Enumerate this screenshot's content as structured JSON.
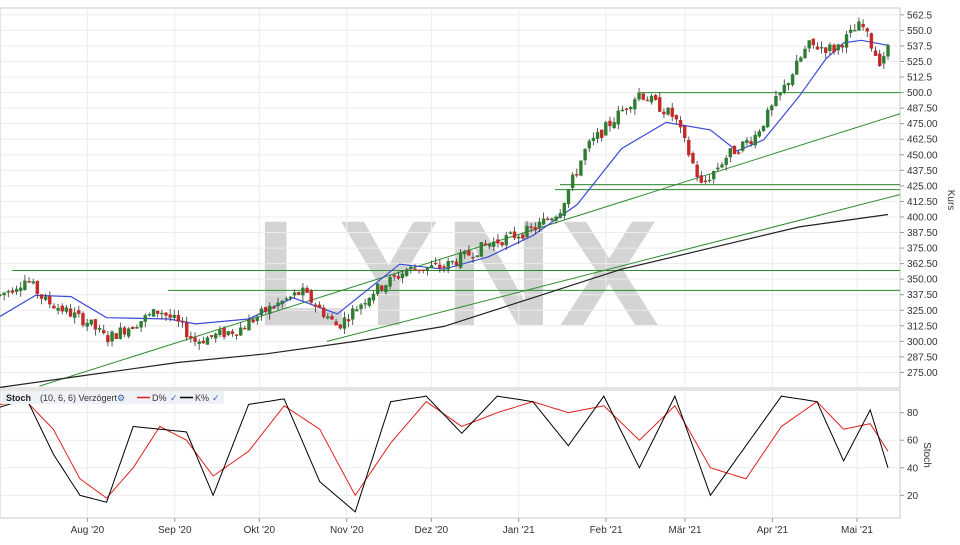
{
  "watermark": "LYNX",
  "price_panel": {
    "axis_title": "Kurs",
    "y_ticks": [
      "562.5",
      "550.0",
      "537.5",
      "525.0",
      "512.5",
      "500.0",
      "487.50",
      "475.00",
      "462.50",
      "450.00",
      "437.50",
      "425.00",
      "412.50",
      "400.00",
      "387.50",
      "375.00",
      "362.50",
      "350.00",
      "337.50",
      "325.00",
      "312.50",
      "300.00",
      "287.50",
      "275.00"
    ]
  },
  "stoch_panel": {
    "label": "Stoch",
    "params": "(10, 6, 6) Verzögert",
    "legend": [
      {
        "name": "D%",
        "color": "#e0201b"
      },
      {
        "name": "K%",
        "color": "#000000"
      }
    ],
    "axis_title": "Stoch",
    "y_ticks": [
      "80",
      "60",
      "40",
      "20"
    ]
  },
  "x_ticks": [
    "Aug '20",
    "Sep '20",
    "Okt '20",
    "Nov '20",
    "Dez '20",
    "Jan '21",
    "Feb '21",
    "Mär '21",
    "Apr '21",
    "Mai '21"
  ],
  "chart_data": [
    {
      "type": "candlestick",
      "series": [
        {
          "name": "Kurs",
          "color_up": "#2e7d32",
          "color_down": "#c62828"
        },
        {
          "name": "MA (kurz)",
          "color": "#3a4bd8"
        },
        {
          "name": "MA (lang)",
          "color": "#222222"
        }
      ],
      "ylabel": "Kurs",
      "ylim": [
        262.5,
        568
      ],
      "x_range": [
        "2020-07-01",
        "2021-05-12"
      ],
      "horizontal_levels": [
        500.0,
        426.0,
        422.0,
        357.0,
        341.0
      ],
      "trendlines": [
        {
          "from": [
            "2020-07-15",
            264
          ],
          "to": [
            "2021-05-12",
            483
          ]
        },
        {
          "from": [
            "2020-10-25",
            300
          ],
          "to": [
            "2021-05-12",
            418
          ]
        }
      ],
      "long_ma": [
        [
          0,
          263
        ],
        [
          0.1,
          273
        ],
        [
          0.2,
          283
        ],
        [
          0.3,
          290
        ],
        [
          0.4,
          300
        ],
        [
          0.5,
          312
        ],
        [
          0.6,
          335
        ],
        [
          0.7,
          358
        ],
        [
          0.8,
          375
        ],
        [
          0.9,
          392
        ],
        [
          1.0,
          402
        ]
      ],
      "short_ma": [
        [
          0,
          320
        ],
        [
          0.04,
          337
        ],
        [
          0.08,
          336
        ],
        [
          0.12,
          319
        ],
        [
          0.19,
          318
        ],
        [
          0.22,
          314
        ],
        [
          0.28,
          318
        ],
        [
          0.33,
          335
        ],
        [
          0.38,
          322
        ],
        [
          0.45,
          362
        ],
        [
          0.5,
          358
        ],
        [
          0.55,
          368
        ],
        [
          0.6,
          385
        ],
        [
          0.65,
          410
        ],
        [
          0.7,
          455
        ],
        [
          0.75,
          476
        ],
        [
          0.8,
          470
        ],
        [
          0.83,
          453
        ],
        [
          0.86,
          462
        ],
        [
          0.9,
          497
        ],
        [
          0.93,
          527
        ],
        [
          0.95,
          540
        ],
        [
          0.97,
          542
        ],
        [
          1.0,
          538
        ]
      ],
      "close_path": [
        [
          0,
          337
        ],
        [
          0.03,
          350
        ],
        [
          0.05,
          333
        ],
        [
          0.1,
          315
        ],
        [
          0.12,
          302
        ],
        [
          0.18,
          325
        ],
        [
          0.2,
          315
        ],
        [
          0.22,
          300
        ],
        [
          0.27,
          310
        ],
        [
          0.3,
          325
        ],
        [
          0.34,
          340
        ],
        [
          0.38,
          312
        ],
        [
          0.42,
          340
        ],
        [
          0.46,
          358
        ],
        [
          0.5,
          360
        ],
        [
          0.55,
          378
        ],
        [
          0.6,
          390
        ],
        [
          0.63,
          405
        ],
        [
          0.66,
          455
        ],
        [
          0.68,
          470
        ],
        [
          0.72,
          500
        ],
        [
          0.76,
          480
        ],
        [
          0.79,
          425
        ],
        [
          0.82,
          450
        ],
        [
          0.85,
          465
        ],
        [
          0.88,
          500
        ],
        [
          0.91,
          538
        ],
        [
          0.94,
          535
        ],
        [
          0.97,
          555
        ],
        [
          0.99,
          525
        ],
        [
          1.0,
          535
        ]
      ]
    },
    {
      "type": "line",
      "ylabel": "Stoch",
      "ylim": [
        5,
        95
      ],
      "y_ticks": [
        80,
        60,
        40,
        20
      ],
      "series": [
        {
          "name": "D%",
          "color": "#e0201b",
          "values": [
            [
              0,
              86
            ],
            [
              0.03,
              88
            ],
            [
              0.06,
              68
            ],
            [
              0.09,
              32
            ],
            [
              0.12,
              18
            ],
            [
              0.15,
              40
            ],
            [
              0.18,
              70
            ],
            [
              0.21,
              60
            ],
            [
              0.24,
              34
            ],
            [
              0.28,
              52
            ],
            [
              0.32,
              85
            ],
            [
              0.36,
              68
            ],
            [
              0.4,
              20
            ],
            [
              0.44,
              58
            ],
            [
              0.48,
              88
            ],
            [
              0.52,
              70
            ],
            [
              0.56,
              80
            ],
            [
              0.6,
              88
            ],
            [
              0.64,
              80
            ],
            [
              0.68,
              85
            ],
            [
              0.72,
              60
            ],
            [
              0.76,
              85
            ],
            [
              0.8,
              40
            ],
            [
              0.84,
              32
            ],
            [
              0.88,
              70
            ],
            [
              0.92,
              88
            ],
            [
              0.95,
              68
            ],
            [
              0.98,
              72
            ],
            [
              1.0,
              52
            ]
          ]
        },
        {
          "name": "K%",
          "color": "#000000",
          "values": [
            [
              0,
              84
            ],
            [
              0.03,
              90
            ],
            [
              0.06,
              50
            ],
            [
              0.09,
              20
            ],
            [
              0.12,
              15
            ],
            [
              0.15,
              70
            ],
            [
              0.18,
              68
            ],
            [
              0.21,
              66
            ],
            [
              0.24,
              20
            ],
            [
              0.28,
              86
            ],
            [
              0.32,
              90
            ],
            [
              0.36,
              30
            ],
            [
              0.4,
              8
            ],
            [
              0.44,
              88
            ],
            [
              0.48,
              92
            ],
            [
              0.52,
              65
            ],
            [
              0.56,
              92
            ],
            [
              0.6,
              88
            ],
            [
              0.64,
              56
            ],
            [
              0.68,
              92
            ],
            [
              0.72,
              40
            ],
            [
              0.76,
              92
            ],
            [
              0.8,
              20
            ],
            [
              0.84,
              56
            ],
            [
              0.88,
              92
            ],
            [
              0.92,
              88
            ],
            [
              0.95,
              45
            ],
            [
              0.98,
              82
            ],
            [
              1.0,
              40
            ]
          ]
        }
      ]
    }
  ]
}
